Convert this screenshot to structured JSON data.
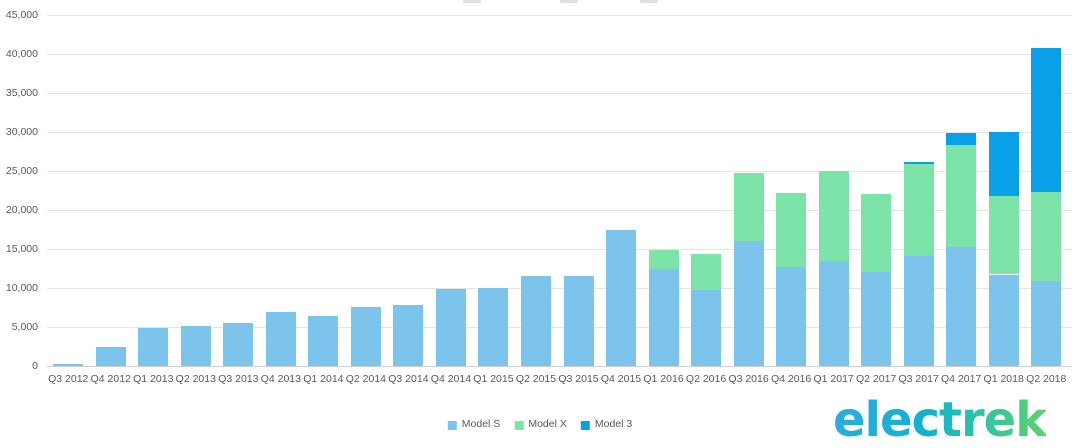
{
  "branding": {
    "logo_text": "electrek"
  },
  "axis": {
    "grid_color": "#E4E4E4",
    "zero_line_color": "#CFCFCF",
    "label_color": "#595959"
  },
  "chart_data": {
    "type": "bar",
    "stacked": true,
    "title": "",
    "categories": [
      "Q3 2012",
      "Q4 2012",
      "Q1 2013",
      "Q2 2013",
      "Q3 2013",
      "Q4 2013",
      "Q1 2014",
      "Q2 2014",
      "Q3 2014",
      "Q4 2014",
      "Q1 2015",
      "Q2 2015",
      "Q3 2015",
      "Q4 2015",
      "Q1 2016",
      "Q2 2016",
      "Q3 2016",
      "Q4 2016",
      "Q1 2017",
      "Q2 2017",
      "Q3 2017",
      "Q4 2017",
      "Q1 2018",
      "Q2 2018"
    ],
    "series": [
      {
        "name": "Model S",
        "color": "#7DC4EC",
        "values": [
          250,
          2400,
          4900,
          5150,
          5500,
          6900,
          6450,
          7580,
          7785,
          9834,
          10030,
          11530,
          11580,
          17400,
          12420,
          9745,
          16000,
          12700,
          13450,
          12000,
          14065,
          15200,
          11730,
          10930
        ]
      },
      {
        "name": "Model X",
        "color": "#7CE3A9",
        "values": [
          0,
          0,
          0,
          0,
          0,
          0,
          0,
          0,
          0,
          0,
          0,
          0,
          0,
          0,
          2400,
          4625,
          8700,
          9500,
          11550,
          10000,
          11865,
          13120,
          10070,
          11370
        ]
      },
      {
        "name": "Model 3",
        "color": "#0AA0E8",
        "values": [
          0,
          0,
          0,
          0,
          0,
          0,
          0,
          0,
          0,
          0,
          0,
          0,
          0,
          0,
          0,
          0,
          0,
          0,
          0,
          0,
          220,
          1550,
          8180,
          18440
        ]
      }
    ],
    "ylim": [
      0,
      45000
    ],
    "ytick_step": 5000,
    "ytick_labels": [
      "0",
      "5,000",
      "10,000",
      "15,000",
      "20,000",
      "25,000",
      "30,000",
      "35,000",
      "40,000",
      "45,000"
    ],
    "grid": "horizontal",
    "legend_position": "bottom-center"
  }
}
